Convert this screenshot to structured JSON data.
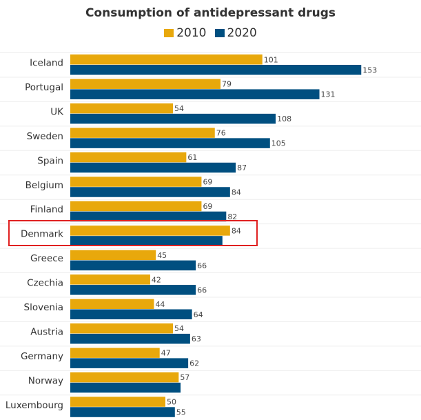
{
  "chart_data": {
    "type": "bar",
    "orientation": "horizontal",
    "title": "Consumption of antidepressant drugs",
    "xlabel": "",
    "ylabel": "",
    "legend_position": "top",
    "grid": true,
    "xlim": [
      0,
      155
    ],
    "categories": [
      "Iceland",
      "Portugal",
      "UK",
      "Sweden",
      "Spain",
      "Belgium",
      "Finland",
      "Denmark",
      "Greece",
      "Czechia",
      "Slovenia",
      "Austria",
      "Germany",
      "Norway",
      "Luxembourg"
    ],
    "series": [
      {
        "name": "2010",
        "color": "#e8a80c",
        "values": [
          101,
          79,
          54,
          76,
          61,
          69,
          69,
          84,
          45,
          42,
          44,
          54,
          47,
          57,
          50
        ],
        "value_labels": [
          "101",
          "79",
          "54",
          "76",
          "61",
          "69",
          "69",
          "84",
          "45",
          "42",
          "44",
          "54",
          "47",
          "57",
          "50"
        ]
      },
      {
        "name": "2020",
        "color": "#004f80",
        "values": [
          153,
          131,
          108,
          105,
          87,
          84,
          82,
          80,
          66,
          66,
          64,
          63,
          62,
          58,
          55
        ],
        "value_labels": [
          "153",
          "131",
          "108",
          "105",
          "87",
          "84",
          "82",
          "",
          "66",
          "66",
          "64",
          "63",
          "62",
          "",
          "55"
        ]
      }
    ],
    "highlighted_category": "Denmark",
    "highlight_color": "#e02020"
  }
}
